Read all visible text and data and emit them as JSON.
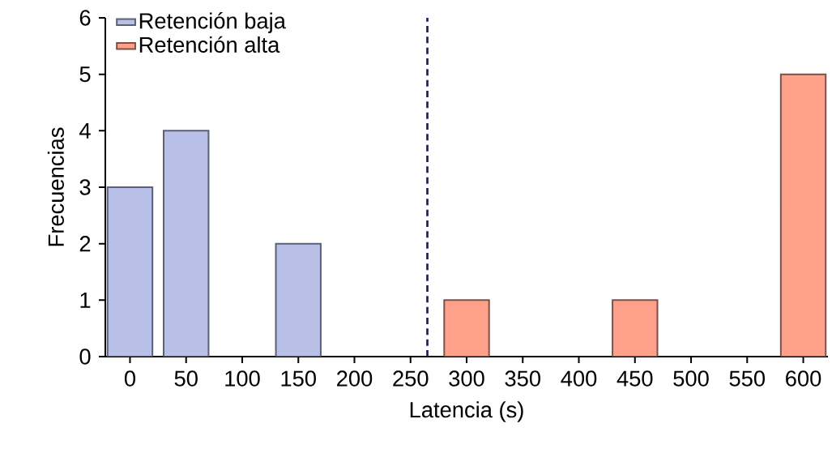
{
  "chart_data": {
    "type": "bar",
    "xlabel": "Latencia (s)",
    "ylabel": "Frecuencias",
    "series": [
      {
        "name": "Retención baja",
        "color": "#b8c0e8",
        "x": [
          0,
          50,
          150
        ],
        "values": [
          3,
          4,
          2
        ]
      },
      {
        "name": "Retención alta",
        "color": "#ffa08a",
        "x": [
          300,
          450,
          600
        ],
        "values": [
          1,
          1,
          5
        ]
      }
    ],
    "xlim": [
      -22,
      622
    ],
    "ylim": [
      0,
      6
    ],
    "xticks": [
      0,
      50,
      100,
      150,
      200,
      250,
      300,
      350,
      400,
      450,
      500,
      550,
      600
    ],
    "yticks": [
      0,
      1,
      2,
      3,
      4,
      5,
      6
    ],
    "ref_lines": [
      {
        "axis": "x",
        "value": 265,
        "color": "#1a2050",
        "line_style": "dashed"
      }
    ],
    "legend": "top left",
    "grid": false
  }
}
